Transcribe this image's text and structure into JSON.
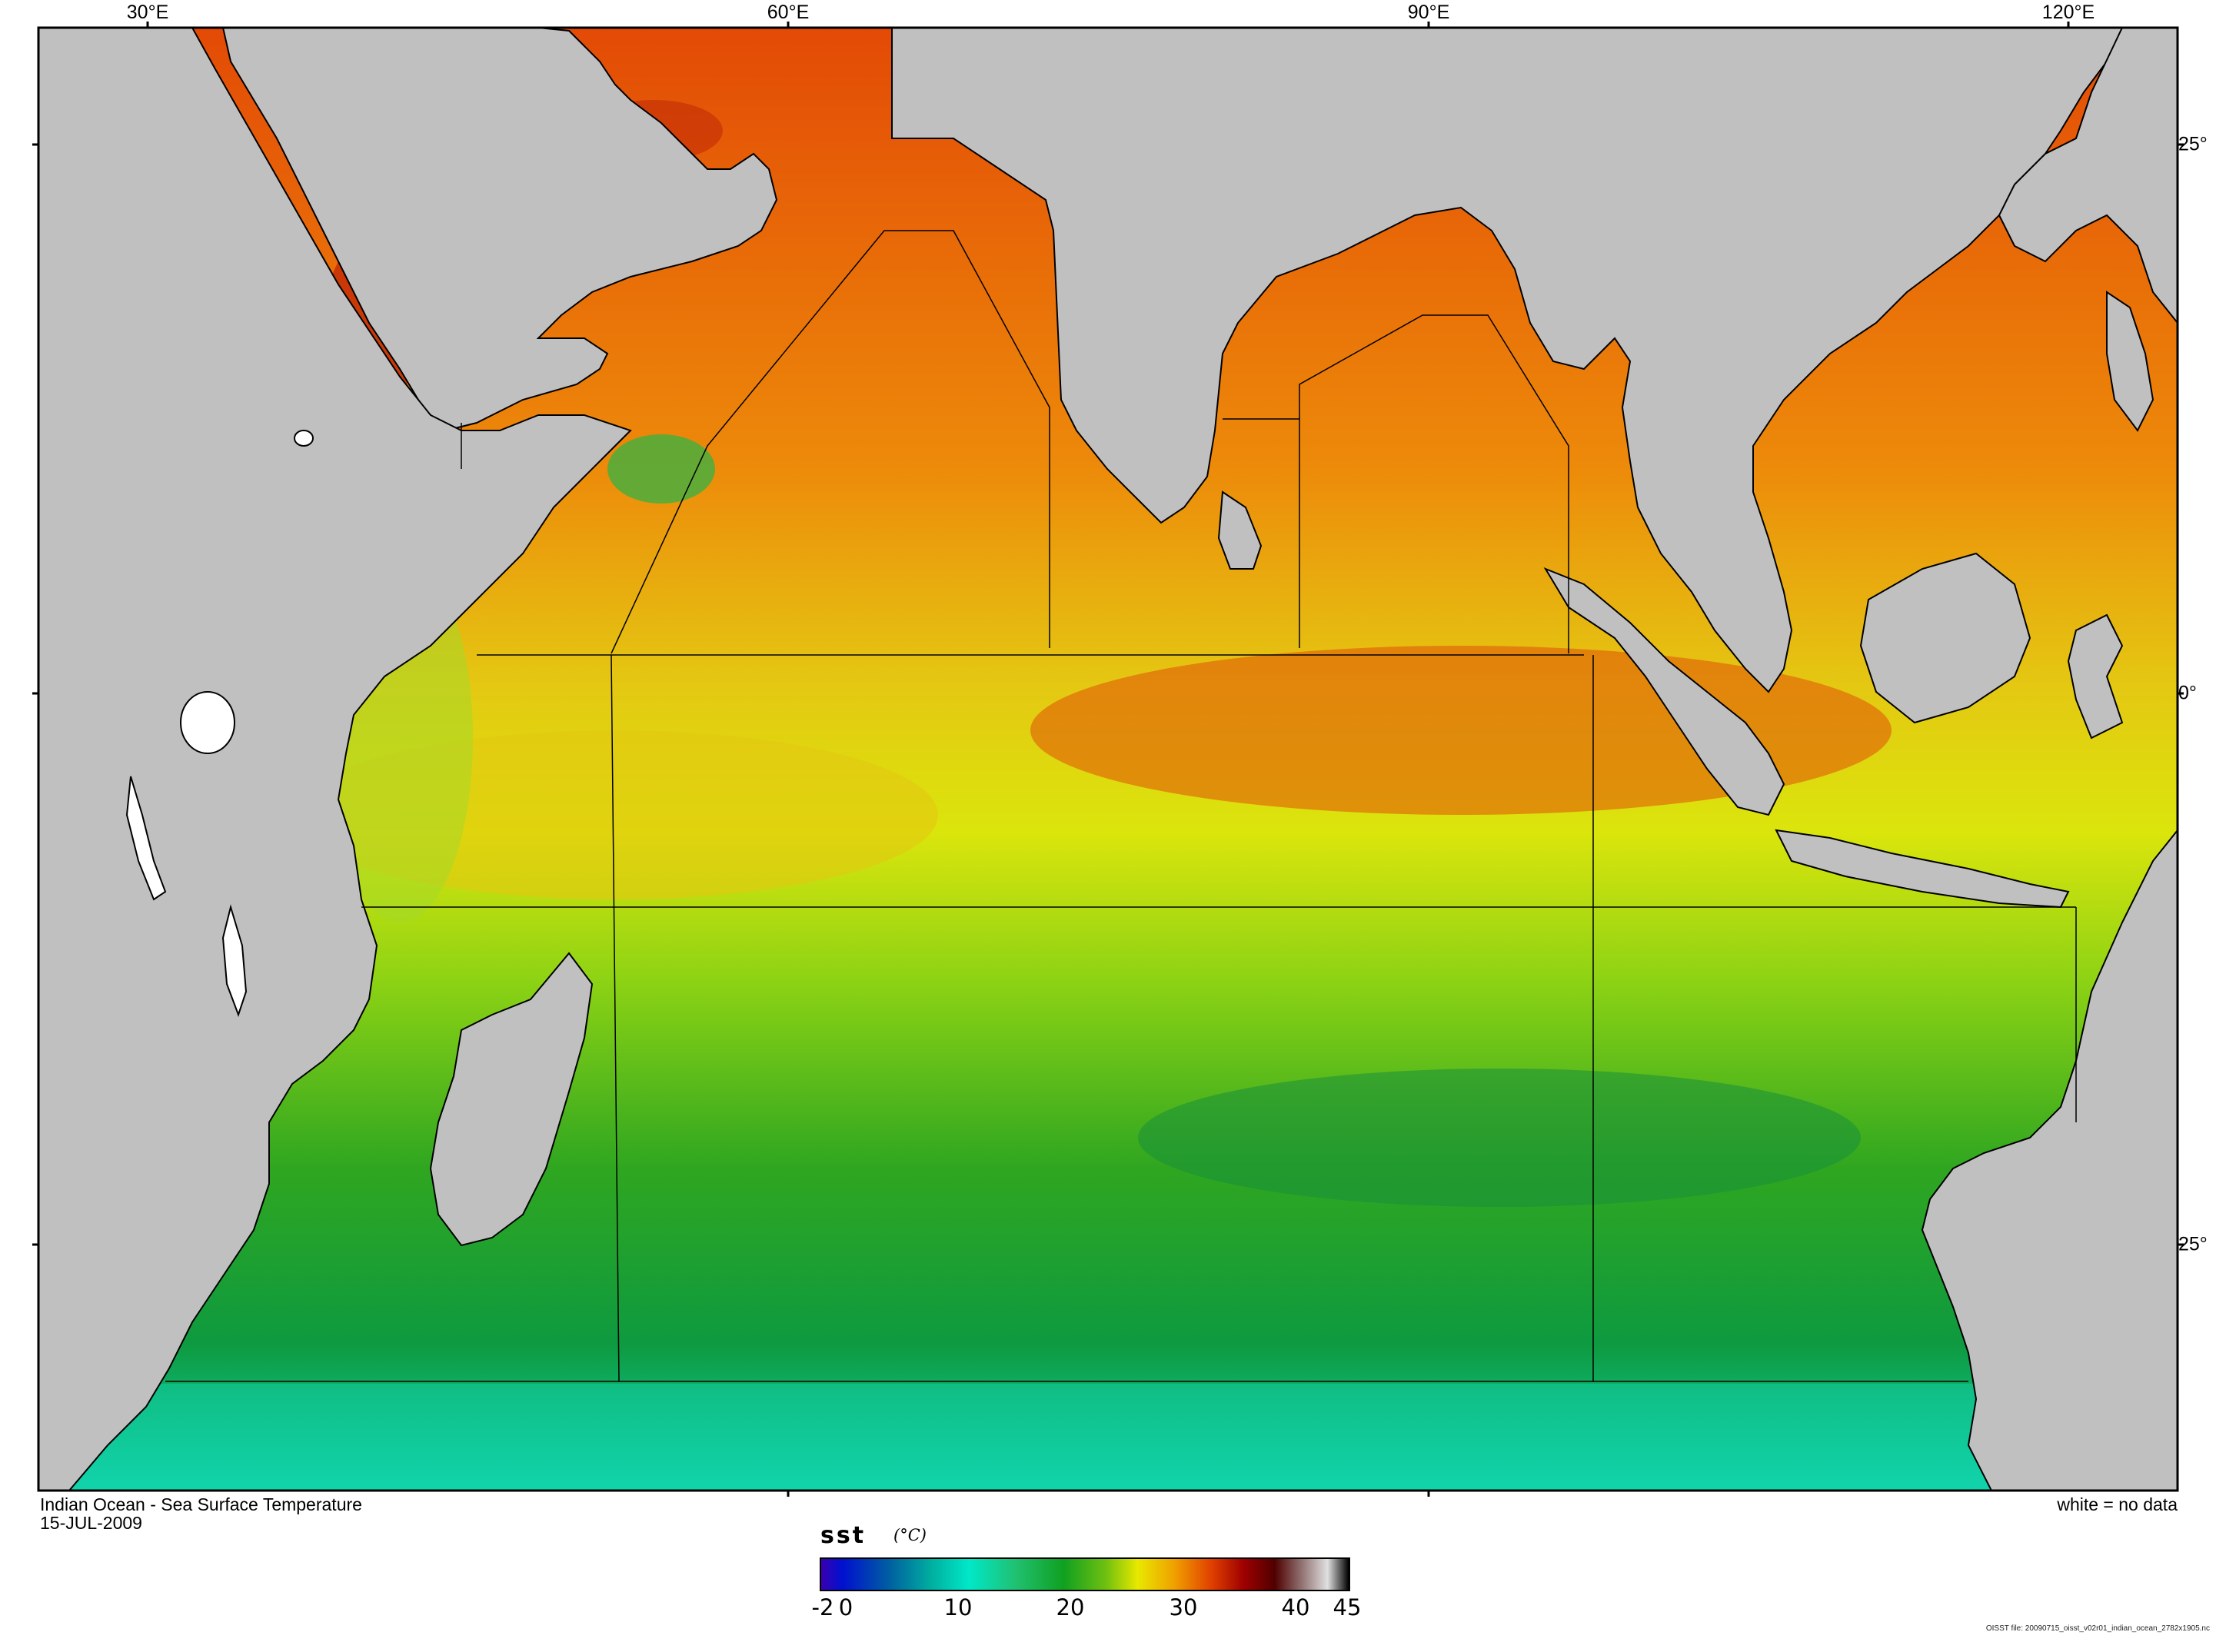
{
  "map": {
    "title": "Indian Ocean - Sea Surface Temperature",
    "date": "15-JUL-2009",
    "legend_note": "white = no data",
    "file_note": "OISST file: 20090715_oisst_v02r01_indian_ocean_2782x1905.nc",
    "longitude_labels": [
      "30°E",
      "60°E",
      "90°E",
      "120°E"
    ],
    "latitude_labels": [
      "25°",
      "0°",
      "25°"
    ],
    "colors": {
      "land": "#c0c0c0",
      "no_data": "#ffffff",
      "outline": "#000000"
    }
  },
  "colorbar": {
    "variable": "sst",
    "unit": "(°C)",
    "ticks": [
      "-2",
      "0",
      "10",
      "20",
      "30",
      "40",
      "45"
    ],
    "range": [
      -2,
      45
    ],
    "colors": [
      "#3a00b0",
      "#0010d0",
      "#0060a0",
      "#00b0a0",
      "#00e8c8",
      "#20c070",
      "#10a020",
      "#70c010",
      "#e8e800",
      "#f0a000",
      "#e04000",
      "#a00000",
      "#500000",
      "#907070",
      "#e0e0e0",
      "#000000"
    ]
  }
}
